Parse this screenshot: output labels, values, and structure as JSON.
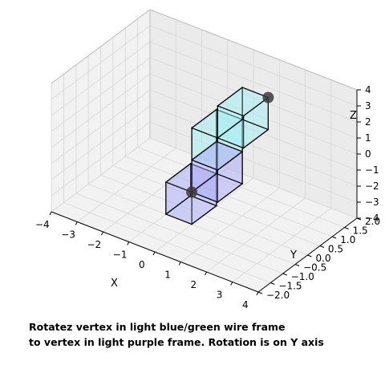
{
  "chart_data": {
    "type": "3d-wireframe",
    "title": "",
    "xlabel": "X",
    "ylabel": "Y",
    "zlabel": "Z",
    "xlim": [
      -4,
      4
    ],
    "ylim": [
      -2,
      2
    ],
    "zlim": [
      -4,
      4
    ],
    "x_ticks": [
      "−4",
      "−3",
      "−2",
      "−1",
      "0",
      "1",
      "2",
      "3",
      "4"
    ],
    "y_ticks": [
      "−2.0",
      "−1.5",
      "−1.0",
      "−0.5",
      "0.0",
      "0.5",
      "1.0",
      "1.5",
      "2.0"
    ],
    "z_ticks": [
      "−4",
      "−3",
      "−2",
      "−1",
      "0",
      "1",
      "2",
      "3",
      "4"
    ],
    "grid": true,
    "shapes": [
      {
        "color": "#9ef0f4",
        "description": "light blue/green wire frame",
        "parts": [
          {
            "x": [
              0,
              1
            ],
            "y": [
              -0.5,
              0.5
            ],
            "z": [
              0,
              2
            ]
          },
          {
            "x": [
              1,
              2
            ],
            "y": [
              -0.5,
              0.5
            ],
            "z": [
              2,
              4
            ]
          }
        ]
      },
      {
        "color": "#a6a6f7",
        "description": "light purple frame",
        "parts": [
          {
            "x": [
              -1,
              0
            ],
            "y": [
              -0.5,
              0.5
            ],
            "z": [
              -4,
              -2
            ]
          },
          {
            "x": [
              0,
              1
            ],
            "y": [
              -0.5,
              0.5
            ],
            "z": [
              -2,
              0
            ]
          }
        ]
      }
    ],
    "vertices": [
      {
        "label": "vertex",
        "x": 2,
        "y": 0.5,
        "z": 4
      },
      {
        "label": "vertex",
        "x": 0,
        "y": -0.5,
        "z": -2
      }
    ]
  },
  "caption": {
    "line1": "Rotatez vertex in light blue/green wire frame",
    "line2": "to vertex in light purple frame.  Rotation is on Y axis"
  }
}
